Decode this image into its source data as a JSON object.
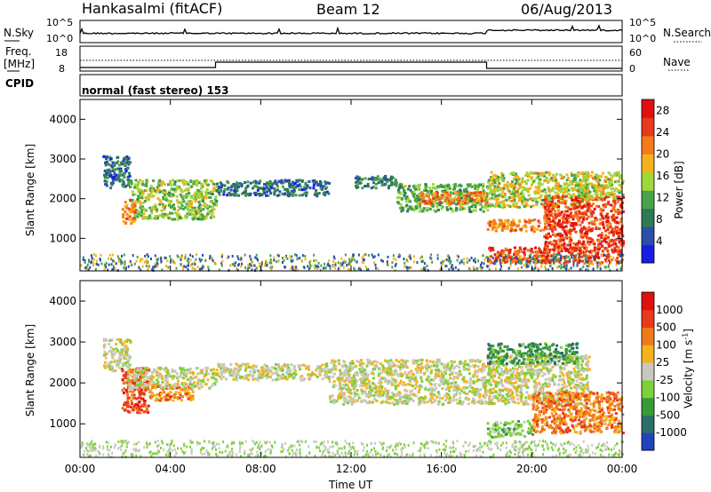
{
  "header": {
    "station": "Hankasalmi (fitACF)",
    "beam": "Beam 12",
    "date": "06/Aug/2013"
  },
  "noise_panel": {
    "left_label": "N.Sky",
    "right_label": "N.Search",
    "left_ticks": [
      "10^5",
      "10^0"
    ],
    "right_ticks": [
      "10^5",
      "10^0"
    ]
  },
  "freq_panel": {
    "left_label_1": "Freq.",
    "left_label_2": "[MHz]",
    "right_label": "Nave",
    "left_ticks": [
      "18",
      "8"
    ],
    "right_ticks": [
      "60",
      "0"
    ]
  },
  "cpid_panel": {
    "label": "CPID",
    "text": "normal (fast stereo) 153"
  },
  "chart_data": [
    {
      "type": "heatmap",
      "name": "power",
      "ylabel": "Slant Range [km]",
      "xlabel": "Time UT",
      "xlim": [
        "00:00",
        "24:00"
      ],
      "ylim": [
        180,
        4500
      ],
      "x_ticks": [
        "00:00",
        "04:00",
        "08:00",
        "12:00",
        "16:00",
        "20:00",
        "00:00"
      ],
      "y_ticks": [
        "1000",
        "2000",
        "3000",
        "4000"
      ],
      "colorbar": {
        "label": "Power [dB]",
        "range": [
          0,
          30
        ],
        "ticks": [
          "4",
          "8",
          "12",
          "16",
          "20",
          "24",
          "28"
        ],
        "colors": [
          "#1b1be6",
          "#2950a8",
          "#2f7a55",
          "#48a24a",
          "#9ed83a",
          "#f5b21e",
          "#f57a1a",
          "#e83a1a",
          "#e01010"
        ]
      },
      "echo_regions": [
        {
          "t": [
            1.0,
            2.2
          ],
          "r": [
            2300,
            3100
          ],
          "level": 6
        },
        {
          "t": [
            2.2,
            6.0
          ],
          "r": [
            1500,
            2500
          ],
          "level": 14
        },
        {
          "t": [
            1.8,
            2.4
          ],
          "r": [
            1400,
            2000
          ],
          "level": 22
        },
        {
          "t": [
            6.0,
            11.0
          ],
          "r": [
            2100,
            2500
          ],
          "level": 6
        },
        {
          "t": [
            12.0,
            14.0
          ],
          "r": [
            2300,
            2600
          ],
          "level": 8
        },
        {
          "t": [
            14.0,
            18.0
          ],
          "r": [
            1700,
            2400
          ],
          "level": 12
        },
        {
          "t": [
            15.0,
            18.0
          ],
          "r": [
            1900,
            2200
          ],
          "level": 22
        },
        {
          "t": [
            18.0,
            22.5
          ],
          "r": [
            1800,
            2700
          ],
          "level": 16
        },
        {
          "t": [
            18.0,
            21.0
          ],
          "r": [
            1200,
            1500
          ],
          "level": 22
        },
        {
          "t": [
            18.0,
            24.0
          ],
          "r": [
            400,
            800
          ],
          "level": 26
        },
        {
          "t": [
            20.5,
            24.0
          ],
          "r": [
            700,
            2100
          ],
          "level": 26
        },
        {
          "t": [
            22.0,
            24.0
          ],
          "r": [
            2000,
            2700
          ],
          "level": 16
        }
      ]
    },
    {
      "type": "heatmap",
      "name": "velocity",
      "ylabel": "Slant Range [km]",
      "xlabel": "Time UT",
      "xlim": [
        "00:00",
        "24:00"
      ],
      "ylim": [
        180,
        4500
      ],
      "x_ticks": [
        "00:00",
        "04:00",
        "08:00",
        "12:00",
        "16:00",
        "20:00",
        "00:00"
      ],
      "y_ticks": [
        "1000",
        "2000",
        "3000",
        "4000"
      ],
      "colorbar": {
        "label": "Velocity [m s-1]",
        "ticks": [
          "1000",
          "500",
          "100",
          "25",
          "-25",
          "-100",
          "-500",
          "-1000"
        ],
        "colors": [
          "#2244bb",
          "#2b6f6a",
          "#3a9a3a",
          "#7cd13a",
          "#c8c8c0",
          "#f5b21e",
          "#f07a1a",
          "#e83a1a",
          "#e01010"
        ]
      },
      "echo_regions": [
        {
          "t": [
            1.0,
            2.2
          ],
          "r": [
            2300,
            3100
          ],
          "level": 4
        },
        {
          "t": [
            1.8,
            3.0
          ],
          "r": [
            1300,
            2400
          ],
          "level": 7
        },
        {
          "t": [
            3.0,
            5.0
          ],
          "r": [
            1600,
            2000
          ],
          "level": 6
        },
        {
          "t": [
            2.0,
            6.0
          ],
          "r": [
            1900,
            2400
          ],
          "level": 4
        },
        {
          "t": [
            6.0,
            11.0
          ],
          "r": [
            2100,
            2500
          ],
          "level": 4
        },
        {
          "t": [
            11.0,
            18.0
          ],
          "r": [
            1500,
            2600
          ],
          "level": 4
        },
        {
          "t": [
            18.0,
            22.5
          ],
          "r": [
            1500,
            2700
          ],
          "level": 4
        },
        {
          "t": [
            18.0,
            20.0
          ],
          "r": [
            700,
            1100
          ],
          "level": 3
        },
        {
          "t": [
            20.0,
            24.0
          ],
          "r": [
            800,
            1800
          ],
          "level": 6
        },
        {
          "t": [
            18.0,
            22.0
          ],
          "r": [
            2500,
            3000
          ],
          "level": 2
        }
      ]
    }
  ]
}
